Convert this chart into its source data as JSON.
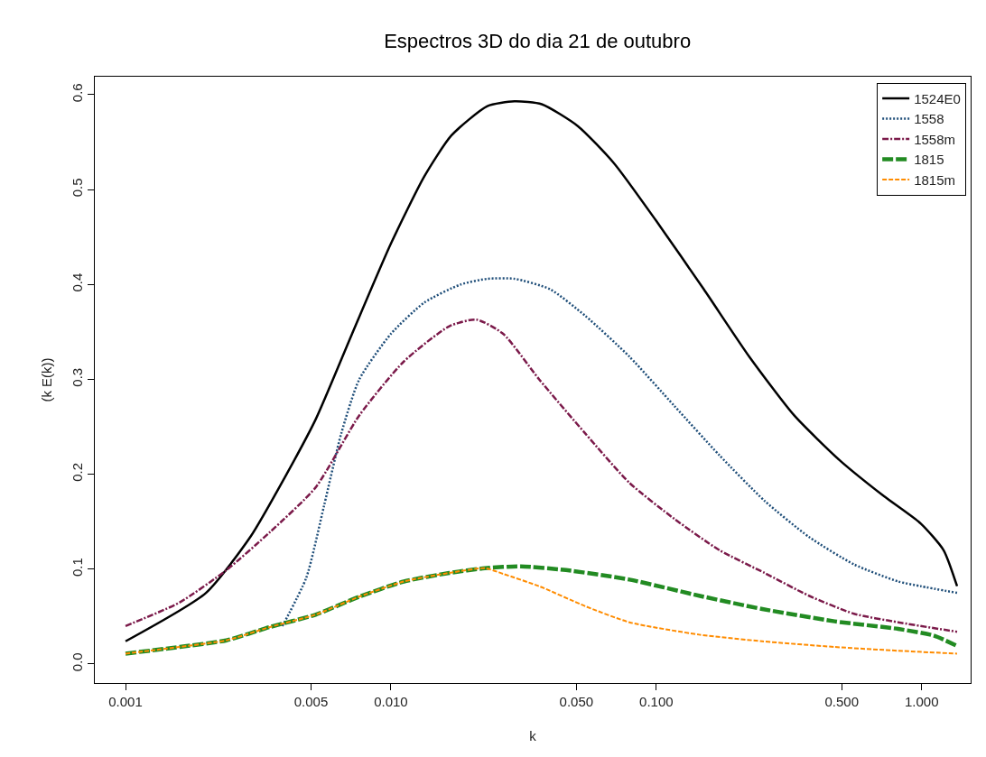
{
  "chart_data": {
    "type": "line",
    "title": "Espectros 3D do dia 21 de outubro",
    "xlabel": "k",
    "ylabel": "(k E(k))",
    "log": "x",
    "legend": "top right",
    "marker": "none",
    "xlim": [
      0.000766,
      1.53
    ],
    "ylim": [
      -0.02,
      0.619
    ],
    "xticks": [
      {
        "value": 0.001,
        "label": "0.001"
      },
      {
        "value": 0.005,
        "label": "0.005"
      },
      {
        "value": 0.01,
        "label": "0.010"
      },
      {
        "value": 0.05,
        "label": "0.050"
      },
      {
        "value": 0.1,
        "label": "0.100"
      },
      {
        "value": 0.5,
        "label": "0.500"
      },
      {
        "value": 1,
        "label": "1.000"
      }
    ],
    "yticks": [
      {
        "value": 0,
        "label": "0.0"
      },
      {
        "value": 0.1,
        "label": "0.1"
      },
      {
        "value": 0.2,
        "label": "0.2"
      },
      {
        "value": 0.3,
        "label": "0.3"
      },
      {
        "value": 0.4,
        "label": "0.4"
      },
      {
        "value": 0.5,
        "label": "0.5"
      },
      {
        "value": 0.6,
        "label": "0.6"
      }
    ],
    "series": [
      {
        "name": "1524E0",
        "color": "#000000",
        "line_style": "solid",
        "x": [
          0.001,
          0.00201,
          0.00297,
          0.00397,
          0.00521,
          0.00714,
          0.01,
          0.01337,
          0.0169,
          0.0231,
          0.0292,
          0.037,
          0.0506,
          0.0692,
          0.1,
          0.151,
          0.224,
          0.331,
          0.49,
          0.72,
          0.993,
          1.21,
          1.36
        ],
        "values": [
          0.024,
          0.075,
          0.135,
          0.196,
          0.258,
          0.348,
          0.443,
          0.514,
          0.557,
          0.588,
          0.593,
          0.59,
          0.567,
          0.528,
          0.467,
          0.395,
          0.324,
          0.262,
          0.215,
          0.177,
          0.148,
          0.12,
          0.082
        ]
      },
      {
        "name": "1558",
        "color": "#1f4e79",
        "line_style": "dotted",
        "x": [
          0.0039,
          0.0048,
          0.0056,
          0.0065,
          0.0076,
          0.01,
          0.01337,
          0.0183,
          0.0231,
          0.0292,
          0.0398,
          0.054,
          0.0792,
          0.117,
          0.173,
          0.256,
          0.376,
          0.556,
          0.816,
          0.993,
          1.36
        ],
        "values": [
          0.04,
          0.091,
          0.167,
          0.243,
          0.3,
          0.348,
          0.381,
          0.4,
          0.406,
          0.406,
          0.395,
          0.367,
          0.324,
          0.272,
          0.22,
          0.172,
          0.134,
          0.105,
          0.087,
          0.082,
          0.075
        ]
      },
      {
        "name": "1558m",
        "color": "#7b1a4a",
        "line_style": "dashed",
        "x": [
          0.001,
          0.0016,
          0.0024,
          0.0035,
          0.0052,
          0.0076,
          0.0112,
          0.0166,
          0.021,
          0.0265,
          0.0362,
          0.054,
          0.0792,
          0.117,
          0.173,
          0.256,
          0.376,
          0.556,
          0.816,
          1.36
        ],
        "values": [
          0.04,
          0.065,
          0.099,
          0.139,
          0.186,
          0.262,
          0.319,
          0.356,
          0.363,
          0.348,
          0.3,
          0.243,
          0.191,
          0.153,
          0.12,
          0.096,
          0.072,
          0.053,
          0.044,
          0.034
        ]
      },
      {
        "name": "1815",
        "color": "#228b22",
        "line_style": "dashed",
        "x": [
          0.001,
          0.0016,
          0.0024,
          0.0035,
          0.0052,
          0.0076,
          0.0112,
          0.0166,
          0.0226,
          0.0309,
          0.0457,
          0.0792,
          0.145,
          0.251,
          0.47,
          0.816,
          1.11,
          1.36
        ],
        "values": [
          0.011,
          0.018,
          0.025,
          0.039,
          0.052,
          0.071,
          0.087,
          0.096,
          0.101,
          0.103,
          0.099,
          0.089,
          0.072,
          0.058,
          0.045,
          0.037,
          0.03,
          0.019
        ]
      },
      {
        "name": "1815m",
        "color": "#ff8c00",
        "line_style": "dashed",
        "x": [
          0.001,
          0.0016,
          0.0024,
          0.0035,
          0.0052,
          0.0076,
          0.0112,
          0.0166,
          0.0226,
          0.0265,
          0.0362,
          0.054,
          0.0792,
          0.145,
          0.251,
          0.47,
          0.816,
          1.36
        ],
        "values": [
          0.011,
          0.018,
          0.025,
          0.039,
          0.052,
          0.071,
          0.087,
          0.096,
          0.101,
          0.095,
          0.082,
          0.061,
          0.044,
          0.031,
          0.024,
          0.018,
          0.014,
          0.011
        ]
      }
    ]
  }
}
